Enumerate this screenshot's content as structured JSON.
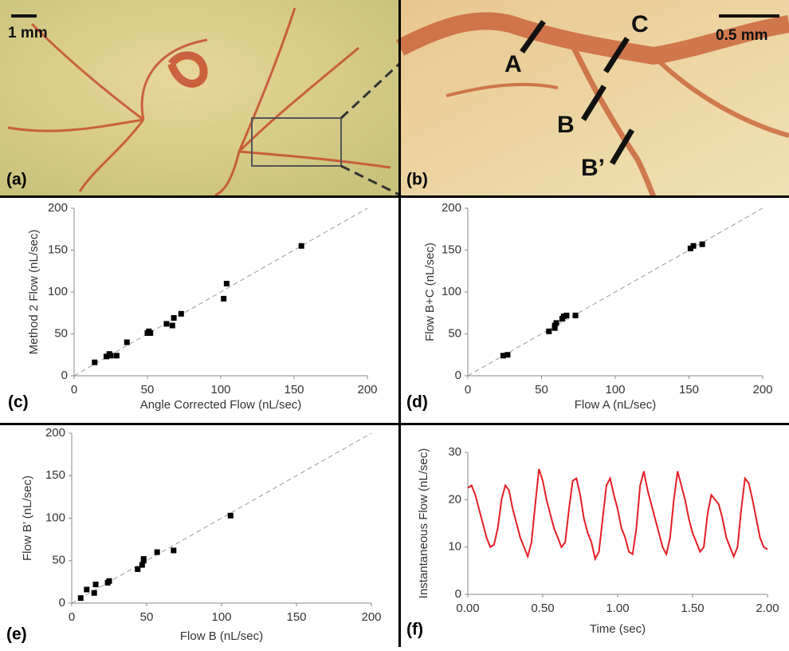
{
  "photos": {
    "a": {
      "label": "(a)",
      "scale": "1 mm"
    },
    "b": {
      "label": "(b)",
      "scale": "0.5 mm",
      "markers": [
        "A",
        "B",
        "C",
        "B’"
      ]
    }
  },
  "chart_data": [
    {
      "type": "scatter",
      "label": "(c)",
      "x_label": "Angle Corrected Flow (nL/sec)",
      "y_label": "Method 2 Flow (nL/sec)",
      "color": "#000000",
      "x": [
        14,
        22,
        24,
        25,
        29,
        36,
        50,
        51,
        52,
        63,
        67,
        68,
        73,
        102,
        104,
        155
      ],
      "values": [
        16,
        23,
        26,
        24,
        24,
        40,
        51,
        53,
        51,
        62,
        60,
        69,
        74,
        92,
        110,
        155
      ],
      "xlim": [
        0,
        200
      ],
      "ylim": [
        0,
        200
      ],
      "xticks": [
        0,
        50,
        100,
        150,
        200
      ],
      "yticks": [
        0,
        50,
        100,
        150,
        200
      ]
    },
    {
      "type": "scatter",
      "label": "(d)",
      "x_label": "Flow A (nL/sec)",
      "y_label": "Flow B+C (nL/sec)",
      "color": "#000000",
      "x": [
        24,
        27,
        55,
        59,
        59,
        60,
        64,
        65,
        67,
        73,
        151,
        153,
        159
      ],
      "values": [
        24,
        25,
        53,
        57,
        60,
        63,
        68,
        71,
        72,
        72,
        152,
        155,
        157
      ],
      "xlim": [
        0,
        200
      ],
      "ylim": [
        0,
        200
      ],
      "xticks": [
        0,
        50,
        100,
        150,
        200
      ],
      "yticks": [
        0,
        50,
        100,
        150,
        200
      ]
    },
    {
      "type": "scatter",
      "label": "(e)",
      "x_label": "Flow B (nL/sec)",
      "y_label": "Flow B’ (nL/sec)",
      "color": "#000000",
      "x": [
        6,
        10,
        15,
        16,
        24,
        25,
        44,
        47,
        48,
        48,
        57,
        68,
        106
      ],
      "values": [
        6,
        16,
        12,
        22,
        24,
        26,
        40,
        45,
        50,
        52,
        60,
        62,
        103
      ],
      "xlim": [
        0,
        200
      ],
      "ylim": [
        0,
        200
      ],
      "xticks": [
        0,
        50,
        100,
        150,
        200
      ],
      "yticks": [
        0,
        50,
        100,
        150,
        200
      ]
    },
    {
      "type": "line",
      "label": "(f)",
      "x_label": "Time (sec)",
      "y_label": "Instantaneous Flow (nL/sec)",
      "color": "#e31e24",
      "x": [
        0,
        0.025,
        0.05,
        0.075,
        0.1,
        0.125,
        0.15,
        0.175,
        0.2,
        0.225,
        0.25,
        0.275,
        0.3,
        0.325,
        0.35,
        0.375,
        0.4,
        0.425,
        0.45,
        0.475,
        0.5,
        0.525,
        0.55,
        0.575,
        0.6,
        0.625,
        0.65,
        0.675,
        0.7,
        0.725,
        0.75,
        0.775,
        0.8,
        0.825,
        0.85,
        0.875,
        0.9,
        0.925,
        0.95,
        0.975,
        1,
        1.025,
        1.05,
        1.075,
        1.1,
        1.125,
        1.15,
        1.175,
        1.2,
        1.225,
        1.25,
        1.275,
        1.3,
        1.325,
        1.35,
        1.375,
        1.4,
        1.425,
        1.45,
        1.475,
        1.5,
        1.525,
        1.55,
        1.575,
        1.6,
        1.625,
        1.65,
        1.675,
        1.7,
        1.725,
        1.75,
        1.775,
        1.8,
        1.825,
        1.85,
        1.875,
        1.9,
        1.925,
        1.95,
        1.975,
        2
      ],
      "values": [
        22.5,
        23,
        21,
        18,
        15,
        12,
        10,
        10.5,
        14,
        20,
        23,
        22,
        18,
        15,
        12,
        10,
        8,
        11,
        19,
        26.5,
        24,
        20,
        17,
        14,
        12,
        10,
        11,
        18,
        24,
        24.5,
        21,
        16,
        13,
        11,
        7.5,
        9,
        16,
        23,
        24.5,
        21,
        18,
        14,
        12,
        9,
        8.5,
        14,
        23,
        26,
        22,
        19,
        16,
        13,
        10,
        8.5,
        12,
        20,
        26,
        23,
        20,
        16,
        13,
        11,
        9,
        10,
        17,
        21,
        20,
        19,
        16,
        12,
        10,
        8,
        10,
        18,
        24.5,
        23.5,
        20,
        16,
        12,
        10,
        9.5
      ],
      "xlim": [
        0,
        2
      ],
      "ylim": [
        0,
        30
      ],
      "xticks": [
        {
          "value": 0,
          "label": "0.00"
        },
        {
          "value": 0.5,
          "label": "0.50"
        },
        {
          "value": 1,
          "label": "1.00"
        },
        {
          "value": 1.5,
          "label": "1.50"
        },
        {
          "value": 2,
          "label": "2.00"
        }
      ],
      "yticks": [
        0,
        10,
        20,
        30
      ]
    }
  ]
}
